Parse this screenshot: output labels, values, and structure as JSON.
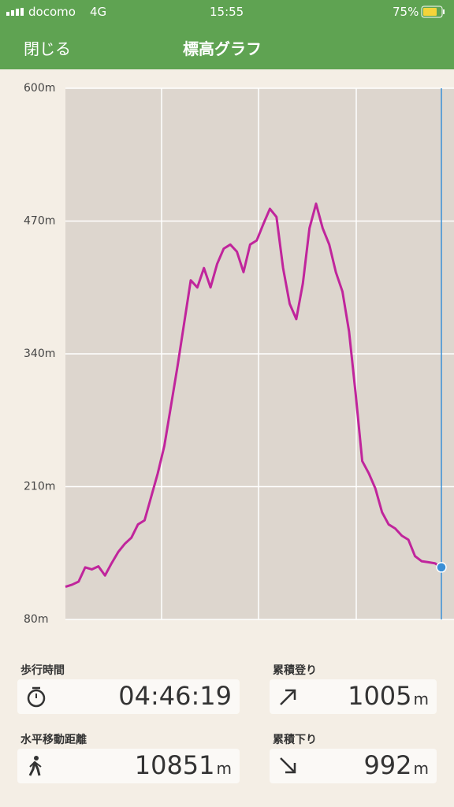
{
  "status_bar": {
    "carrier": "docomo",
    "network": "4G",
    "time": "15:55",
    "battery": "75%"
  },
  "header": {
    "close": "閉じる",
    "title": "標高グラフ"
  },
  "chart_data": {
    "type": "line",
    "ylim": [
      80,
      600
    ],
    "yticks": [
      {
        "value": 80,
        "label": "80m"
      },
      {
        "value": 210,
        "label": "210m"
      },
      {
        "value": 340,
        "label": "340m"
      },
      {
        "value": 470,
        "label": "470m"
      },
      {
        "value": 600,
        "label": "600m"
      }
    ],
    "grid": true,
    "color": "#c0259c",
    "values": [
      112,
      114,
      117,
      131,
      129,
      132,
      123,
      135,
      146,
      154,
      160,
      173,
      177,
      200,
      223,
      250,
      289,
      328,
      370,
      412,
      405,
      424,
      405,
      428,
      443,
      447,
      440,
      420,
      447,
      451,
      467,
      482,
      474,
      424,
      389,
      374,
      409,
      463,
      487,
      463,
      447,
      420,
      401,
      362,
      301,
      235,
      223,
      208,
      185,
      173,
      169,
      162,
      158,
      142,
      137,
      136,
      135,
      131
    ]
  },
  "stats": [
    {
      "label": "歩行時間",
      "value": "04:46:19"
    },
    {
      "label": "累積登り",
      "value": "1005",
      "unit": "m"
    },
    {
      "label": "水平移動距離",
      "value": "10851",
      "unit": "m"
    },
    {
      "label": "累積下り",
      "value": "992",
      "unit": "m"
    }
  ]
}
